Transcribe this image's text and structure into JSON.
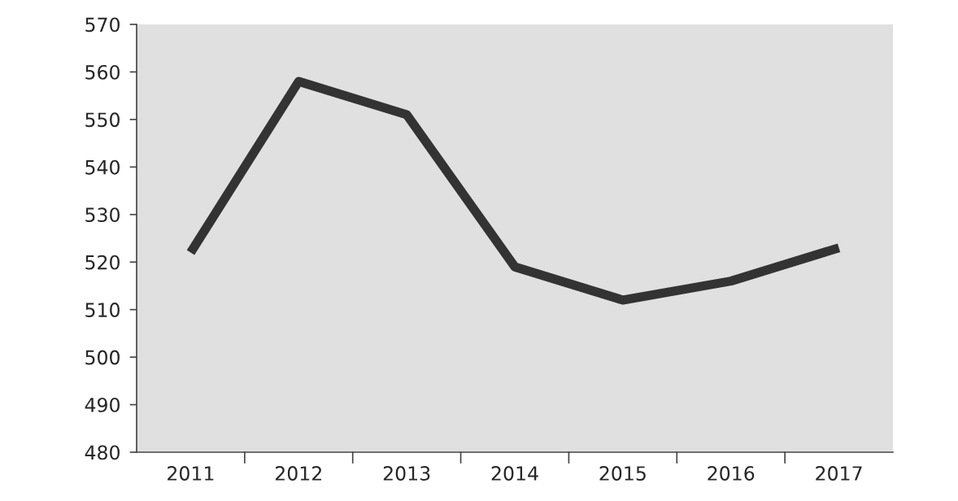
{
  "chart_data": {
    "type": "line",
    "categories": [
      "2011",
      "2012",
      "2013",
      "2014",
      "2015",
      "2016",
      "2017"
    ],
    "series": [
      {
        "color": "#333333",
        "values": [
          522,
          558,
          551,
          519,
          512,
          516,
          523
        ]
      }
    ],
    "ylim": [
      480,
      570
    ],
    "yticks": [
      480,
      490,
      500,
      510,
      520,
      530,
      540,
      550,
      560,
      570
    ],
    "grid": false,
    "legend": false,
    "marker": "none",
    "line_style": "solid"
  }
}
